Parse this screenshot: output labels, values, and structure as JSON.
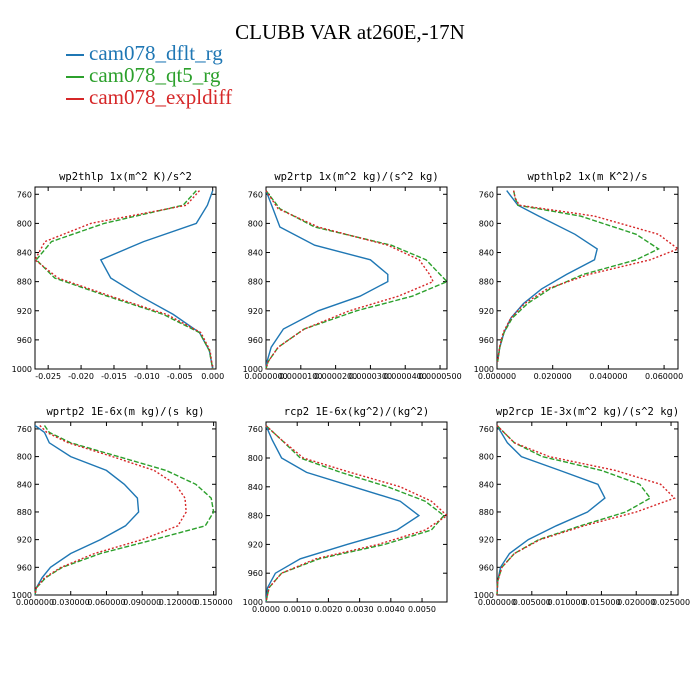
{
  "figure": {
    "title": "CLUBB VAR at260E,-17N",
    "legend": [
      {
        "label": "cam078_dflt_rg",
        "color": "#1f77b4"
      },
      {
        "label": "cam078_qt5_rg",
        "color": "#2ca02c"
      },
      {
        "label": "cam078_expldiff",
        "color": "#d62728"
      }
    ]
  },
  "chart_data": [
    {
      "type": "line",
      "title": "wp2thlp  1x(m^2 K)/s^2",
      "xlim": [
        -0.027,
        0.0005
      ],
      "ylim": [
        750,
        1000
      ],
      "xticks": [
        -0.025,
        -0.02,
        -0.015,
        -0.01,
        -0.005,
        0.0
      ],
      "xticklabels": [
        "-0.025",
        "-0.020",
        "-0.015",
        "-0.010",
        "-0.005",
        "0.000"
      ],
      "yticks": [
        760,
        800,
        840,
        880,
        920,
        960,
        1000
      ],
      "yticklabels": [
        "760",
        "800",
        "840",
        "880",
        "920",
        "960",
        "1000"
      ],
      "y": [
        755,
        775,
        800,
        825,
        850,
        875,
        900,
        925,
        950,
        975,
        1000
      ],
      "series": [
        {
          "name": "cam078_dflt_rg",
          "color": "#1f77b4",
          "dash": "",
          "values": [
            0.0,
            -0.0008,
            -0.0025,
            -0.0105,
            -0.017,
            -0.0155,
            -0.011,
            -0.006,
            -0.002,
            -0.0005,
            0.0
          ]
        },
        {
          "name": "cam078_qt5_rg",
          "color": "#2ca02c",
          "dash": "5 2",
          "values": [
            -0.0025,
            -0.0045,
            -0.0165,
            -0.0245,
            -0.0268,
            -0.024,
            -0.016,
            -0.0075,
            -0.002,
            -0.0005,
            0.0
          ]
        },
        {
          "name": "cam078_expldiff",
          "color": "#d62728",
          "dash": "2 2",
          "values": [
            -0.002,
            -0.004,
            -0.0185,
            -0.0255,
            -0.027,
            -0.0235,
            -0.0155,
            -0.007,
            -0.0018,
            -0.0004,
            0.0
          ]
        }
      ]
    },
    {
      "type": "line",
      "title": "wp2rtp  1x(m^2 kg)/(s^2 kg)",
      "xlim": [
        0,
        5.2e-05
      ],
      "ylim": [
        750,
        1000
      ],
      "xticks": [
        0,
        1e-05,
        2e-05,
        3e-05,
        4e-05,
        5e-05
      ],
      "xticklabels": [
        "0.0000000",
        "0.0000100",
        "0.0000200",
        "0.0000300",
        "0.0000400",
        "0.0000500"
      ],
      "yticks": [
        760,
        800,
        840,
        880,
        920,
        960,
        1000
      ],
      "yticklabels": [
        "760",
        "800",
        "840",
        "880",
        "920",
        "960",
        "1000"
      ],
      "y": [
        755,
        780,
        805,
        830,
        850,
        870,
        880,
        900,
        920,
        945,
        970,
        990,
        1000
      ],
      "series": [
        {
          "name": "cam078_dflt_rg",
          "color": "#1f77b4",
          "dash": "",
          "values": [
            0.0,
            2e-06,
            4e-06,
            1.4e-05,
            3e-05,
            3.5e-05,
            3.5e-05,
            2.7e-05,
            1.5e-05,
            5e-06,
            1.5e-06,
            3e-07,
            0.0
          ]
        },
        {
          "name": "cam078_qt5_rg",
          "color": "#2ca02c",
          "dash": "5 2",
          "values": [
            0.0,
            4e-06,
            1.4e-05,
            3.6e-05,
            4.6e-05,
            5e-05,
            5.2e-05,
            4.2e-05,
            2.6e-05,
            1.1e-05,
            3.5e-06,
            6e-07,
            0.0
          ]
        },
        {
          "name": "cam078_expldiff",
          "color": "#d62728",
          "dash": "2 2",
          "values": [
            0.0,
            3.5e-06,
            1.5e-05,
            3.5e-05,
            4.4e-05,
            4.7e-05,
            4.8e-05,
            3.8e-05,
            2.4e-05,
            1.1e-05,
            3.5e-06,
            6e-07,
            0.0
          ]
        }
      ]
    },
    {
      "type": "line",
      "title": "wpthlp2  1x(m K^2)/s",
      "xlim": [
        0,
        0.065
      ],
      "ylim": [
        750,
        1000
      ],
      "xticks": [
        0,
        0.02,
        0.04,
        0.06
      ],
      "xticklabels": [
        "0.000000",
        "0.020000",
        "0.040000",
        "0.060000"
      ],
      "yticks": [
        760,
        800,
        840,
        880,
        920,
        960,
        1000
      ],
      "yticklabels": [
        "760",
        "800",
        "840",
        "880",
        "920",
        "960",
        "1000"
      ],
      "y": [
        755,
        765,
        775,
        790,
        815,
        835,
        850,
        870,
        890,
        910,
        930,
        950,
        970,
        990
      ],
      "series": [
        {
          "name": "cam078_dflt_rg",
          "color": "#1f77b4",
          "dash": "",
          "values": [
            0.0035,
            0.0055,
            0.0075,
            0.015,
            0.028,
            0.036,
            0.035,
            0.025,
            0.016,
            0.0095,
            0.005,
            0.0025,
            0.001,
            0.0002
          ]
        },
        {
          "name": "cam078_qt5_rg",
          "color": "#2ca02c",
          "dash": "5 2",
          "values": [
            0.006,
            0.0065,
            0.0075,
            0.03,
            0.05,
            0.058,
            0.05,
            0.031,
            0.019,
            0.011,
            0.0055,
            0.0025,
            0.001,
            0.0002
          ]
        },
        {
          "name": "cam078_expldiff",
          "color": "#d62728",
          "dash": "2 2",
          "values": [
            0.006,
            0.0065,
            0.008,
            0.035,
            0.058,
            0.065,
            0.055,
            0.033,
            0.018,
            0.01,
            0.005,
            0.0022,
            0.0009,
            0.0002
          ]
        }
      ]
    },
    {
      "type": "line",
      "title": "wprtp2  1E-6x(m kg)/(s kg)",
      "xlim": [
        0,
        0.152
      ],
      "ylim": [
        750,
        1000
      ],
      "xticks": [
        0,
        0.03,
        0.06,
        0.09,
        0.12,
        0.15
      ],
      "xticklabels": [
        "0.000000",
        "0.030000",
        "0.060000",
        "0.090000",
        "0.120000",
        "0.150000"
      ],
      "yticks": [
        760,
        800,
        840,
        880,
        920,
        960,
        1000
      ],
      "yticklabels": [
        "760",
        "800",
        "840",
        "880",
        "920",
        "960",
        "1000"
      ],
      "y": [
        755,
        765,
        780,
        800,
        820,
        840,
        860,
        880,
        900,
        920,
        940,
        960,
        975,
        990,
        1000
      ],
      "series": [
        {
          "name": "cam078_dflt_rg",
          "color": "#1f77b4",
          "dash": "",
          "values": [
            0.0,
            0.008,
            0.012,
            0.03,
            0.06,
            0.075,
            0.086,
            0.087,
            0.076,
            0.055,
            0.03,
            0.013,
            0.006,
            0.001,
            0.0
          ]
        },
        {
          "name": "cam078_qt5_rg",
          "color": "#2ca02c",
          "dash": "5 2",
          "values": [
            0.008,
            0.012,
            0.03,
            0.07,
            0.11,
            0.135,
            0.148,
            0.15,
            0.143,
            0.1,
            0.055,
            0.023,
            0.009,
            0.001,
            0.0
          ]
        },
        {
          "name": "cam078_expldiff",
          "color": "#d62728",
          "dash": "2 2",
          "values": [
            0.004,
            0.01,
            0.028,
            0.065,
            0.1,
            0.118,
            0.126,
            0.127,
            0.12,
            0.09,
            0.05,
            0.022,
            0.008,
            0.001,
            0.0
          ]
        }
      ]
    },
    {
      "type": "line",
      "title": "rcp2  1E-6x(kg^2)/(kg^2)",
      "xlim": [
        0,
        0.0058
      ],
      "ylim": [
        750,
        1000
      ],
      "xticks": [
        0,
        0.001,
        0.002,
        0.003,
        0.004,
        0.005
      ],
      "xticklabels": [
        "0.0000",
        "0.0010",
        "0.0020",
        "0.0030",
        "0.0040",
        "0.0050"
      ],
      "yticks": [
        760,
        800,
        840,
        880,
        920,
        960,
        1000
      ],
      "yticklabels": [
        "760",
        "800",
        "840",
        "880",
        "920",
        "960",
        "1000"
      ],
      "y": [
        755,
        775,
        800,
        820,
        840,
        860,
        880,
        900,
        920,
        940,
        960,
        980,
        1000
      ],
      "series": [
        {
          "name": "cam078_dflt_rg",
          "color": "#1f77b4",
          "dash": "",
          "values": [
            0.0,
            0.0002,
            0.0005,
            0.0013,
            0.0028,
            0.0043,
            0.0049,
            0.0042,
            0.0026,
            0.0011,
            0.0003,
            5e-05,
            0.0
          ]
        },
        {
          "name": "cam078_qt5_rg",
          "color": "#2ca02c",
          "dash": "5 2",
          "values": [
            0.0,
            0.0005,
            0.0011,
            0.0024,
            0.0039,
            0.0051,
            0.0057,
            0.0053,
            0.0038,
            0.0017,
            0.0005,
            0.0001,
            0.0
          ]
        },
        {
          "name": "cam078_expldiff",
          "color": "#d62728",
          "dash": "2 2",
          "values": [
            0.0,
            0.0005,
            0.0012,
            0.0027,
            0.0043,
            0.0053,
            0.0058,
            0.0051,
            0.0036,
            0.0016,
            0.0005,
            0.0001,
            0.0
          ]
        }
      ]
    },
    {
      "type": "line",
      "title": "wp2rcp  1E-3x(m^2 kg)/(s^2 kg)",
      "xlim": [
        0,
        0.026
      ],
      "ylim": [
        750,
        1000
      ],
      "xticks": [
        0,
        0.005,
        0.01,
        0.015,
        0.02,
        0.025
      ],
      "xticklabels": [
        "0.000000",
        "0.005000",
        "0.010000",
        "0.015000",
        "0.020000",
        "0.025000"
      ],
      "yticks": [
        760,
        800,
        840,
        880,
        920,
        960,
        1000
      ],
      "yticklabels": [
        "760",
        "800",
        "840",
        "880",
        "920",
        "960",
        "1000"
      ],
      "y": [
        755,
        780,
        800,
        820,
        840,
        860,
        880,
        900,
        920,
        940,
        960,
        980,
        1000
      ],
      "series": [
        {
          "name": "cam078_dflt_rg",
          "color": "#1f77b4",
          "dash": "",
          "values": [
            0.0,
            0.0015,
            0.0035,
            0.009,
            0.0145,
            0.0155,
            0.013,
            0.0085,
            0.0045,
            0.0018,
            0.0005,
            0.0001,
            0.0
          ]
        },
        {
          "name": "cam078_qt5_rg",
          "color": "#2ca02c",
          "dash": "5 2",
          "values": [
            0.0,
            0.0025,
            0.0065,
            0.015,
            0.0205,
            0.022,
            0.0185,
            0.012,
            0.006,
            0.0025,
            0.0007,
            0.0001,
            0.0
          ]
        },
        {
          "name": "cam078_expldiff",
          "color": "#d62728",
          "dash": "2 2",
          "values": [
            0.0,
            0.0025,
            0.0075,
            0.017,
            0.0235,
            0.0255,
            0.02,
            0.0125,
            0.0062,
            0.0025,
            0.0007,
            0.0001,
            0.0
          ]
        }
      ]
    }
  ]
}
